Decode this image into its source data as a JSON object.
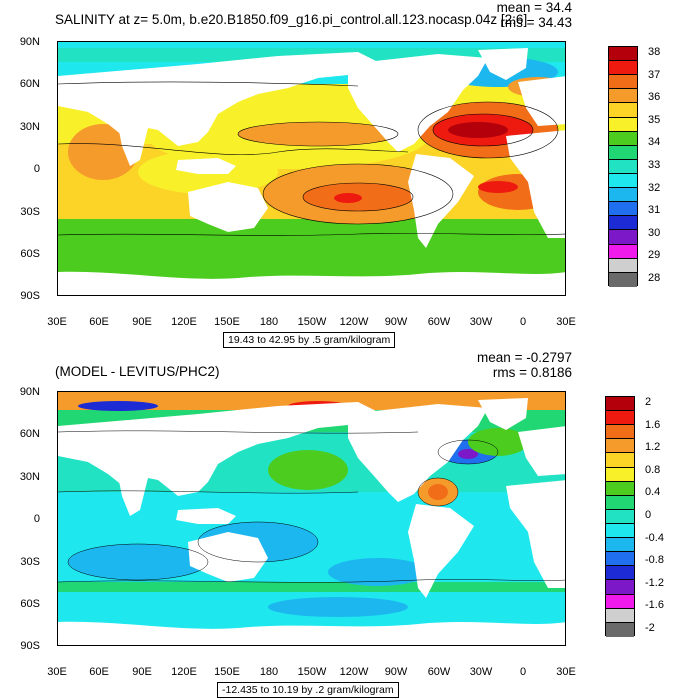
{
  "top": {
    "title": "SALINITY at z=   5.0m, b.e20.B1850.f09_g16.pi_control.all.123.nocasp.04z [2:6]",
    "stat_mean": "mean = 34.4",
    "stat_rms": "rms = 34.43",
    "range_note": "19.43 to 42.95 by .5 gram/kilogram",
    "colorbar": {
      "labels": [
        "38",
        "37",
        "36",
        "35",
        "34",
        "33",
        "32",
        "31",
        "30",
        "29",
        "28"
      ],
      "colors": [
        "#b3000b",
        "#ee1a10",
        "#f26d18",
        "#f59b2c",
        "#fcd327",
        "#f8f12a",
        "#4bcc1e",
        "#20d774",
        "#22e2c4",
        "#1ee7ee",
        "#1db7f0",
        "#1f6fee",
        "#1c2bd4",
        "#7c18c8",
        "#f01aec",
        "#cfcfcf",
        "#6a6a6a"
      ]
    }
  },
  "bottom": {
    "title": "(MODEL - LEVITUS/PHC2)",
    "stat_mean": "mean = -0.2797",
    "stat_rms": "rms = 0.8186",
    "range_note": "-12.435 to 10.19 by .2 gram/kilogram",
    "colorbar": {
      "labels": [
        "2",
        "1.6",
        "1.2",
        "0.8",
        "0.4",
        "0",
        "-0.4",
        "-0.8",
        "-1.2",
        "-1.6",
        "-2"
      ],
      "colors": [
        "#b3000b",
        "#ee1a10",
        "#f26d18",
        "#f59b2c",
        "#fcd327",
        "#f8f12a",
        "#4bcc1e",
        "#20d774",
        "#22e2c4",
        "#1ee7ee",
        "#1db7f0",
        "#1f6fee",
        "#1c2bd4",
        "#7c18c8",
        "#f01aec",
        "#cfcfcf",
        "#6a6a6a"
      ]
    }
  },
  "axes": {
    "lat_labels": [
      "90N",
      "60N",
      "30N",
      "0",
      "30S",
      "60S",
      "90S"
    ],
    "lon_labels": [
      "30E",
      "60E",
      "90E",
      "120E",
      "150E",
      "180",
      "150W",
      "120W",
      "90W",
      "60W",
      "30W",
      "0",
      "30E"
    ]
  }
}
